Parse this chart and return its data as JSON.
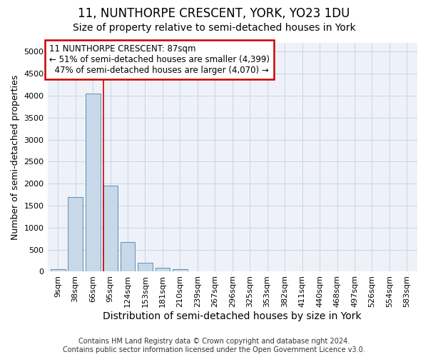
{
  "title1": "11, NUNTHORPE CRESCENT, YORK, YO23 1DU",
  "title2": "Size of property relative to semi-detached houses in York",
  "xlabel": "Distribution of semi-detached houses by size in York",
  "ylabel": "Number of semi-detached properties",
  "footer1": "Contains HM Land Registry data © Crown copyright and database right 2024.",
  "footer2": "Contains public sector information licensed under the Open Government Licence v3.0.",
  "bin_labels": [
    "9sqm",
    "38sqm",
    "66sqm",
    "95sqm",
    "124sqm",
    "153sqm",
    "181sqm",
    "210sqm",
    "239sqm",
    "267sqm",
    "296sqm",
    "325sqm",
    "353sqm",
    "382sqm",
    "411sqm",
    "440sqm",
    "468sqm",
    "497sqm",
    "526sqm",
    "554sqm",
    "583sqm"
  ],
  "bar_values": [
    50,
    1700,
    4050,
    1950,
    670,
    200,
    90,
    60,
    0,
    0,
    0,
    0,
    0,
    0,
    0,
    0,
    0,
    0,
    0,
    0,
    0
  ],
  "bar_color": "#c8d8e8",
  "bar_edge_color": "#6090b0",
  "property_line_x": 2.62,
  "annotation_text": "11 NUNTHORPE CRESCENT: 87sqm\n← 51% of semi-detached houses are smaller (4,399)\n  47% of semi-detached houses are larger (4,070) →",
  "annotation_box_color": "#ffffff",
  "annotation_box_edge": "#cc0000",
  "property_line_color": "#cc0000",
  "ylim": [
    0,
    5200
  ],
  "yticks": [
    0,
    500,
    1000,
    1500,
    2000,
    2500,
    3000,
    3500,
    4000,
    4500,
    5000
  ],
  "grid_color": "#c8d4e4",
  "background_color": "#eef2f8",
  "title1_fontsize": 12,
  "title2_fontsize": 10,
  "xlabel_fontsize": 10,
  "ylabel_fontsize": 9,
  "tick_fontsize": 8,
  "annotation_fontsize": 8.5,
  "footer_fontsize": 7
}
